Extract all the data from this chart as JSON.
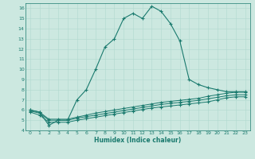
{
  "xlabel": "Humidex (Indice chaleur)",
  "background_color": "#cce8e0",
  "line_color": "#1a7a6e",
  "xlim": [
    -0.5,
    23.5
  ],
  "ylim": [
    4,
    16.5
  ],
  "xticks": [
    0,
    1,
    2,
    3,
    4,
    5,
    6,
    7,
    8,
    9,
    10,
    11,
    12,
    13,
    14,
    15,
    16,
    17,
    18,
    19,
    20,
    21,
    22,
    23
  ],
  "yticks": [
    4,
    5,
    6,
    7,
    8,
    9,
    10,
    11,
    12,
    13,
    14,
    15,
    16
  ],
  "series1_x": [
    0,
    1,
    2,
    3,
    4,
    5,
    6,
    7,
    8,
    9,
    10,
    11,
    12,
    13,
    14,
    15,
    16,
    17,
    18,
    19,
    20,
    21,
    22,
    23
  ],
  "series1_y": [
    6.0,
    5.8,
    4.5,
    5.0,
    5.0,
    7.0,
    8.0,
    10.0,
    12.2,
    13.0,
    15.0,
    15.5,
    15.0,
    16.2,
    15.7,
    14.5,
    12.8,
    9.0,
    8.5,
    8.2,
    8.0,
    7.8,
    7.8,
    7.8
  ],
  "series2_x": [
    0,
    1,
    2,
    3,
    4,
    5,
    6,
    7,
    8,
    9,
    10,
    11,
    12,
    13,
    14,
    15,
    16,
    17,
    18,
    19,
    20,
    21,
    22,
    23
  ],
  "series2_y": [
    5.8,
    5.5,
    4.8,
    4.8,
    4.8,
    5.0,
    5.15,
    5.3,
    5.45,
    5.6,
    5.75,
    5.9,
    6.05,
    6.2,
    6.3,
    6.4,
    6.5,
    6.6,
    6.7,
    6.8,
    7.0,
    7.2,
    7.3,
    7.3
  ],
  "series3_x": [
    0,
    1,
    2,
    3,
    4,
    5,
    6,
    7,
    8,
    9,
    10,
    11,
    12,
    13,
    14,
    15,
    16,
    17,
    18,
    19,
    20,
    21,
    22,
    23
  ],
  "series3_y": [
    5.9,
    5.7,
    5.0,
    5.0,
    5.0,
    5.2,
    5.35,
    5.5,
    5.65,
    5.8,
    5.95,
    6.1,
    6.25,
    6.4,
    6.55,
    6.65,
    6.75,
    6.85,
    6.95,
    7.1,
    7.25,
    7.4,
    7.5,
    7.5
  ],
  "series4_x": [
    0,
    1,
    2,
    3,
    4,
    5,
    6,
    7,
    8,
    9,
    10,
    11,
    12,
    13,
    14,
    15,
    16,
    17,
    18,
    19,
    20,
    21,
    22,
    23
  ],
  "series4_y": [
    6.0,
    5.8,
    5.1,
    5.1,
    5.1,
    5.3,
    5.5,
    5.7,
    5.85,
    6.0,
    6.15,
    6.3,
    6.45,
    6.6,
    6.75,
    6.85,
    6.95,
    7.05,
    7.15,
    7.35,
    7.5,
    7.65,
    7.75,
    7.75
  ],
  "grid_color": "#b0d8cf",
  "font_color": "#1a7a6e"
}
